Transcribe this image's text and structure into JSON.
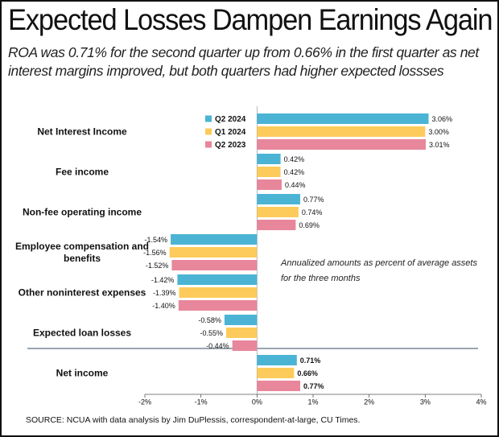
{
  "chart_data": {
    "type": "bar",
    "orientation": "horizontal",
    "title": "Expected Losses Dampen Earnings Again",
    "subtitle": "ROA was 0.71% for the second quarter up from 0.66% in the first quarter as net interest margins improved, but both quarters had higher expected lossses",
    "annotation": [
      "Annualized amounts as percent of average assets",
      "for the three months"
    ],
    "source": "SOURCE: NCUA with data analysis by Jim DuPlessis, correspondent-at-large, CU Times.",
    "categories": [
      "Net Interest Income",
      "Fee income",
      "Non-fee operating income",
      "Employee compensation and benefits",
      "Other noninterest expenses",
      "Expected loan losses",
      "Net income"
    ],
    "series": [
      {
        "name": "Q2 2024",
        "color": "#4bb4d4",
        "values": [
          3.06,
          0.42,
          0.77,
          -1.54,
          -1.42,
          -0.58,
          0.71
        ],
        "value_labels": [
          "3.06%",
          "0.42%",
          "0.77%",
          "-1.54%",
          "-1.42%",
          "-0.58%",
          "0.71%"
        ]
      },
      {
        "name": "Q1 2024",
        "color": "#fdcb5b",
        "values": [
          3.0,
          0.42,
          0.74,
          -1.56,
          -1.39,
          -0.55,
          0.66
        ],
        "value_labels": [
          "3.00%",
          "0.42%",
          "0.74%",
          "-1.56%",
          "-1.39%",
          "-0.55%",
          "0.66%"
        ]
      },
      {
        "name": "Q2 2023",
        "color": "#e8869b",
        "values": [
          3.01,
          0.44,
          0.69,
          -1.52,
          -1.4,
          -0.44,
          0.77
        ],
        "value_labels": [
          "3.01%",
          "0.44%",
          "0.69%",
          "-1.52%",
          "-1.40%",
          "-0.44%",
          "0.77%"
        ]
      }
    ],
    "xlim": [
      -2,
      4
    ],
    "xticks": [
      {
        "value": -2,
        "label": "-2%"
      },
      {
        "value": -1,
        "label": "-1%"
      },
      {
        "value": 0,
        "label": "0%"
      },
      {
        "value": 1,
        "label": "1%"
      },
      {
        "value": 2,
        "label": "2%"
      },
      {
        "value": 3,
        "label": "3%"
      },
      {
        "value": 4,
        "label": "4%"
      }
    ],
    "legend": "top-left"
  }
}
